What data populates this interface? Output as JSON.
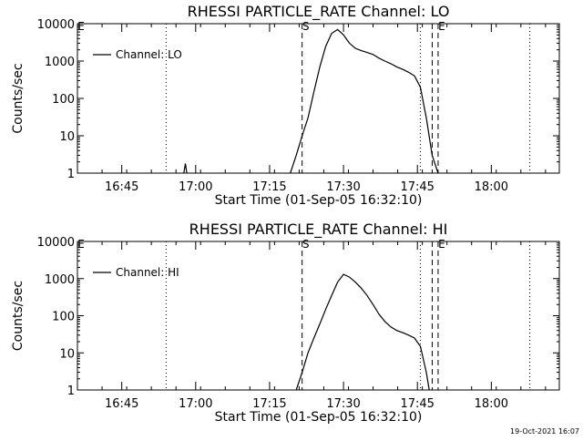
{
  "footer": {
    "timestamp": "19-Oct-2021 16:07"
  },
  "chart_data": [
    {
      "type": "line",
      "title": "RHESSI PARTICLE_RATE Channel: LO",
      "xlabel": "Start Time (01-Sep-05 16:32:10)",
      "ylabel": "Counts/sec",
      "yscale": "log",
      "xlim": [
        16.6,
        18.23
      ],
      "ylim": [
        1,
        10000
      ],
      "x_ticks": [
        {
          "v": 16.75,
          "label": "16:45"
        },
        {
          "v": 17.0,
          "label": "17:00"
        },
        {
          "v": 17.25,
          "label": "17:15"
        },
        {
          "v": 17.5,
          "label": "17:30"
        },
        {
          "v": 17.75,
          "label": "17:45"
        },
        {
          "v": 18.0,
          "label": "18:00"
        }
      ],
      "y_ticks": [
        {
          "v": 1,
          "label": "1"
        },
        {
          "v": 10,
          "label": "10"
        },
        {
          "v": 100,
          "label": "100"
        },
        {
          "v": 1000,
          "label": "1000"
        },
        {
          "v": 10000,
          "label": "10000"
        }
      ],
      "markers": [
        {
          "x": 17.36,
          "style": "dashed",
          "label": "S"
        },
        {
          "x": 17.8,
          "style": "dashed",
          "label": ""
        },
        {
          "x": 17.82,
          "style": "dashed",
          "label": "E"
        },
        {
          "x": 16.9,
          "style": "dotted",
          "label": ""
        },
        {
          "x": 17.76,
          "style": "dotted",
          "label": ""
        },
        {
          "x": 18.13,
          "style": "dotted",
          "label": ""
        }
      ],
      "corner_label": "E",
      "legend": {
        "text": "Channel: LO",
        "position": "top-left"
      },
      "series": [
        {
          "name": "Channel: LO",
          "x": [
            16.96,
            16.965,
            16.97
          ],
          "y": [
            1,
            1.8,
            1
          ]
        },
        {
          "name": "Channel: LO",
          "x": [
            17.32,
            17.34,
            17.36,
            17.38,
            17.4,
            17.42,
            17.44,
            17.46,
            17.48,
            17.5,
            17.52,
            17.54,
            17.56,
            17.58,
            17.6,
            17.62,
            17.64,
            17.66,
            17.68,
            17.7,
            17.72,
            17.74,
            17.76,
            17.78,
            17.8,
            17.82
          ],
          "y": [
            1,
            3,
            10,
            30,
            150,
            700,
            2500,
            5500,
            7000,
            5000,
            3000,
            2200,
            1900,
            1700,
            1500,
            1200,
            1000,
            850,
            700,
            600,
            500,
            400,
            200,
            30,
            3,
            1
          ]
        }
      ]
    },
    {
      "type": "line",
      "title": "RHESSI PARTICLE_RATE Channel: HI",
      "xlabel": "Start Time (01-Sep-05 16:32:10)",
      "ylabel": "Counts/sec",
      "yscale": "log",
      "xlim": [
        16.6,
        18.23
      ],
      "ylim": [
        1,
        10000
      ],
      "x_ticks": [
        {
          "v": 16.75,
          "label": "16:45"
        },
        {
          "v": 17.0,
          "label": "17:00"
        },
        {
          "v": 17.25,
          "label": "17:15"
        },
        {
          "v": 17.5,
          "label": "17:30"
        },
        {
          "v": 17.75,
          "label": "17:45"
        },
        {
          "v": 18.0,
          "label": "18:00"
        }
      ],
      "y_ticks": [
        {
          "v": 1,
          "label": "1"
        },
        {
          "v": 10,
          "label": "10"
        },
        {
          "v": 100,
          "label": "100"
        },
        {
          "v": 1000,
          "label": "1000"
        },
        {
          "v": 10000,
          "label": "10000"
        }
      ],
      "markers": [
        {
          "x": 17.36,
          "style": "dashed",
          "label": "S"
        },
        {
          "x": 17.8,
          "style": "dashed",
          "label": ""
        },
        {
          "x": 17.82,
          "style": "dashed",
          "label": "E"
        },
        {
          "x": 16.9,
          "style": "dotted",
          "label": ""
        },
        {
          "x": 17.76,
          "style": "dotted",
          "label": ""
        },
        {
          "x": 18.13,
          "style": "dotted",
          "label": ""
        }
      ],
      "corner_label": "E",
      "legend": {
        "text": "Channel: HI",
        "position": "top-left"
      },
      "series": [
        {
          "name": "Channel: HI",
          "x": [
            17.34,
            17.36,
            17.38,
            17.4,
            17.42,
            17.44,
            17.46,
            17.48,
            17.5,
            17.52,
            17.54,
            17.56,
            17.58,
            17.6,
            17.62,
            17.64,
            17.66,
            17.68,
            17.7,
            17.72,
            17.74,
            17.76,
            17.78,
            17.79
          ],
          "y": [
            1,
            3,
            10,
            25,
            60,
            150,
            350,
            800,
            1300,
            1100,
            800,
            550,
            350,
            200,
            110,
            70,
            50,
            40,
            35,
            30,
            25,
            15,
            3,
            1
          ]
        }
      ]
    }
  ]
}
